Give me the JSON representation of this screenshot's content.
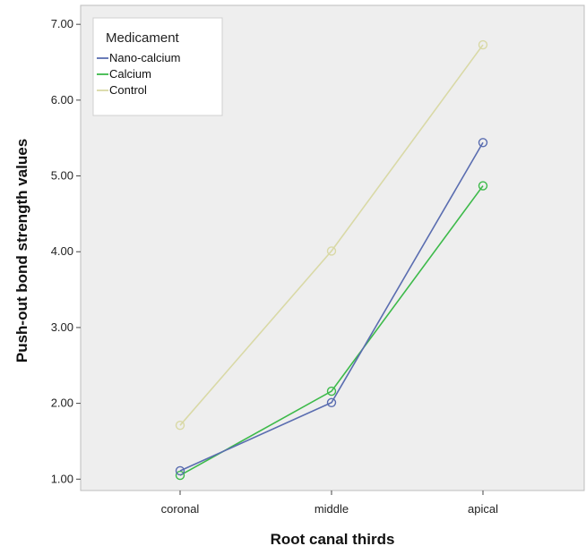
{
  "chart_data": {
    "type": "line",
    "title": "",
    "xlabel": "Root canal thirds",
    "ylabel": "Push-out bond strength values",
    "categories": [
      "coronal",
      "middle",
      "apical"
    ],
    "ylim": [
      0.85,
      7.25
    ],
    "yticks": [
      1.0,
      2.0,
      3.0,
      4.0,
      5.0,
      6.0,
      7.0
    ],
    "ytick_labels": [
      "1.00",
      "2.00",
      "3.00",
      "4.00",
      "5.00",
      "6.00",
      "7.00"
    ],
    "grid": false,
    "plot_background": "#eeeeee",
    "markers": "open-circle",
    "legend": {
      "title": "Medicament",
      "placement": "top-left"
    },
    "series": [
      {
        "name": "Nano-calcium",
        "color": "#5a6db0",
        "values": [
          1.11,
          2.01,
          5.44
        ]
      },
      {
        "name": "Calcium",
        "color": "#3dba4a",
        "values": [
          1.05,
          2.16,
          4.87
        ]
      },
      {
        "name": "Control",
        "color": "#d9d9a6",
        "values": [
          1.71,
          4.01,
          6.73
        ]
      }
    ]
  }
}
